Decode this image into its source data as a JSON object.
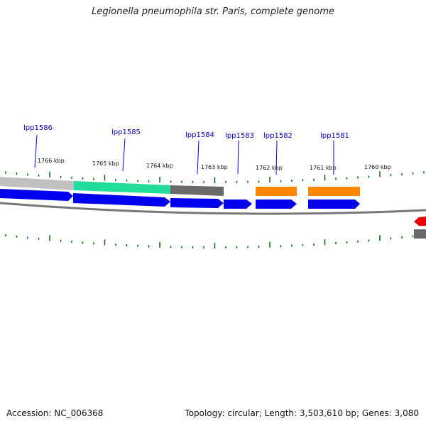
{
  "title": "Legionella pneumophila str. Paris, complete genome",
  "accession": "Accession: NC_006368",
  "topology": "Topology: circular; Length: 3,503,610 bp; Genes: 3,080",
  "colors": {
    "cds": "#0000ee",
    "gene_label": "#0000bb",
    "tick": "#006600",
    "backbone": "#888888",
    "gray_feature": "#bbbbbb",
    "dark_gray_feature": "#666666",
    "green_feature": "#22dd99",
    "orange_feature": "#ff8800",
    "red_feature": "#ee0000"
  },
  "gene_labels": [
    "lpp1586",
    "lpp1585",
    "lpp1584",
    "lpp1583",
    "lpp1582",
    "lpp1581"
  ],
  "kbp_labels": [
    "1766 kbp",
    "1765 kbp",
    "1764 kbp",
    "1763 kbp",
    "1762 kbp",
    "1761 kbp",
    "1760 kbp"
  ]
}
